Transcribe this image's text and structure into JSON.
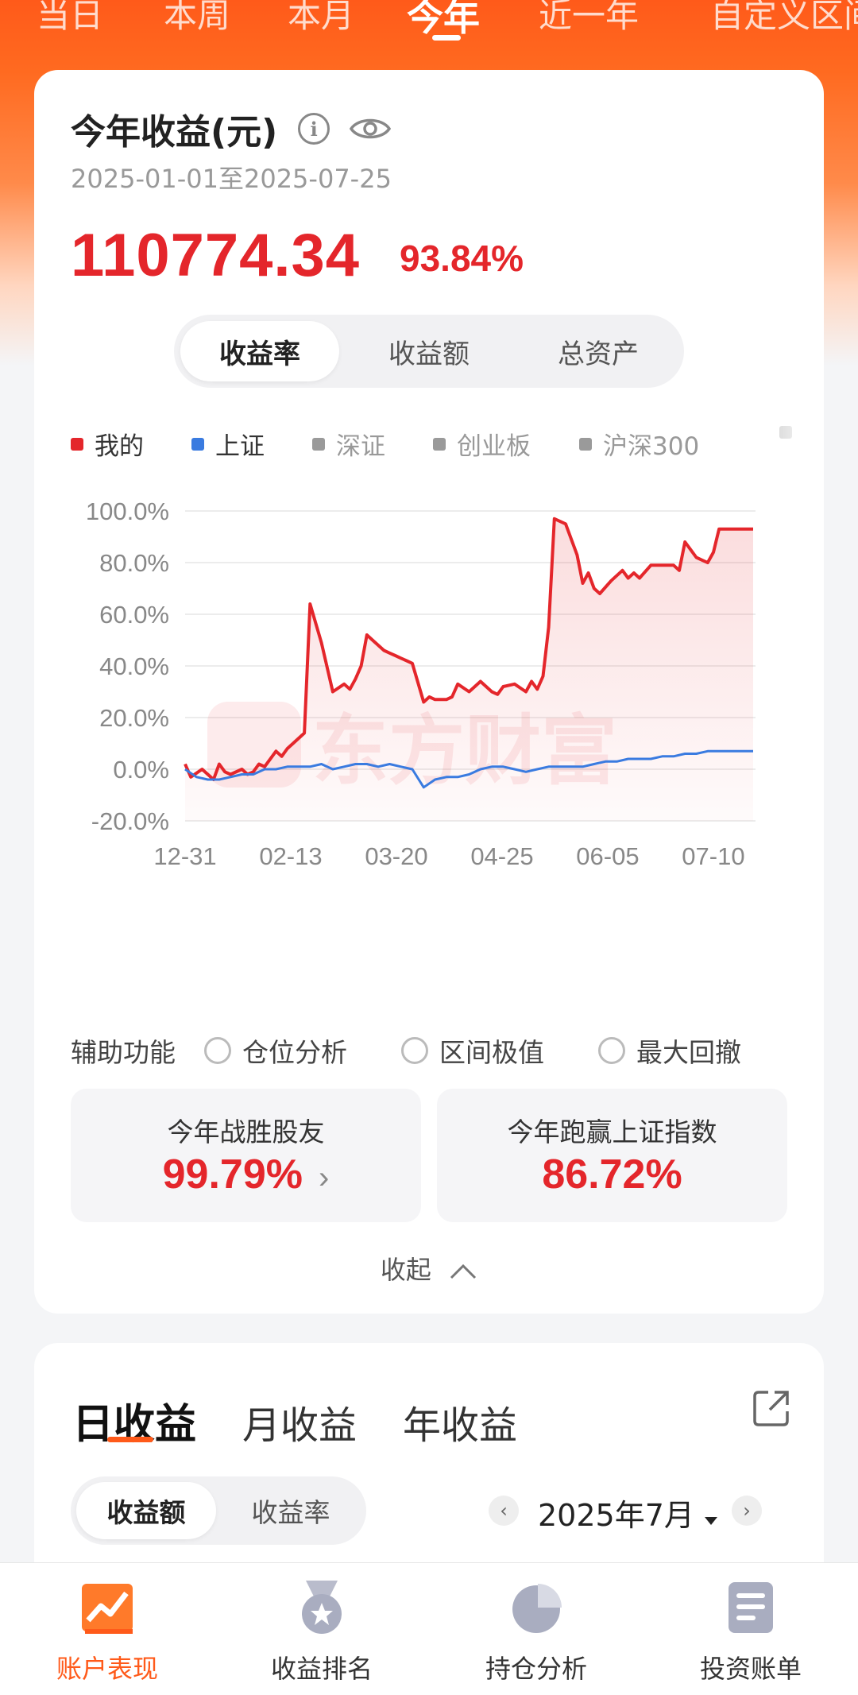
{
  "period_tabs": [
    {
      "label": "当日",
      "active": false
    },
    {
      "label": "本周",
      "active": false
    },
    {
      "label": "本月",
      "active": false
    },
    {
      "label": "今年",
      "active": true
    },
    {
      "label": "近一年",
      "active": false
    },
    {
      "label": "自定义区间",
      "active": false
    }
  ],
  "summary": {
    "title": "今年收益(元)",
    "date_range": "2025-01-01至2025-07-25",
    "amount": "110774.34",
    "percent": "93.84%"
  },
  "metric_tabs": [
    {
      "label": "收益率",
      "active": true
    },
    {
      "label": "收益额",
      "active": false
    },
    {
      "label": "总资产",
      "active": false
    }
  ],
  "legend": [
    {
      "label": "我的",
      "color": "#e4262b"
    },
    {
      "label": "上证",
      "color": "#3a7be0"
    },
    {
      "label": "深证",
      "color": "#9a9a9a"
    },
    {
      "label": "创业板",
      "color": "#9a9a9a"
    },
    {
      "label": "沪深300",
      "color": "#9a9a9a"
    }
  ],
  "watermark": "东方财富",
  "chart_data": {
    "type": "line",
    "x_tick_labels": [
      "12-31",
      "02-13",
      "03-20",
      "04-25",
      "06-05",
      "07-10"
    ],
    "y_tick_labels": [
      "100.0%",
      "80.0%",
      "60.0%",
      "40.0%",
      "20.0%",
      "0.0%",
      "-20.0%"
    ],
    "ylim": [
      -20,
      100
    ],
    "series": [
      {
        "name": "我的",
        "color": "#e4262b",
        "x_index": [
          0,
          1,
          3,
          5,
          6,
          7,
          8,
          10,
          11,
          12,
          13,
          14,
          16,
          17,
          18,
          19,
          20,
          21,
          22,
          24,
          26,
          28,
          29,
          30,
          31,
          32,
          33,
          35,
          36,
          37,
          38,
          39,
          40,
          42,
          43,
          44,
          46,
          47,
          48,
          50,
          52,
          54,
          55,
          56,
          58,
          60,
          61,
          62,
          63,
          64,
          65,
          67,
          69,
          70,
          71,
          72,
          73,
          75,
          77,
          78,
          79,
          80,
          82,
          84,
          86,
          87,
          88,
          89,
          90,
          91,
          92,
          93,
          94,
          95,
          96,
          97,
          98,
          99,
          100
        ],
        "values": [
          2,
          -3,
          0,
          -4,
          2,
          -1,
          -2,
          0,
          -2,
          -1,
          2,
          1,
          7,
          5,
          8,
          10,
          12,
          14,
          64,
          49,
          30,
          33,
          31,
          35,
          40,
          52,
          50,
          46,
          45,
          44,
          43,
          42,
          41,
          26,
          28,
          27,
          27,
          28,
          33,
          30,
          34,
          30,
          29,
          32,
          33,
          30,
          34,
          31,
          36,
          55,
          97,
          95,
          83,
          72,
          76,
          70,
          68,
          73,
          77,
          74,
          76,
          74,
          79,
          79,
          79,
          77,
          88,
          85,
          82,
          81,
          80,
          84,
          93,
          93,
          93,
          93,
          93,
          93,
          93
        ],
        "note": "values are approximate readings"
      },
      {
        "name": "上证",
        "color": "#3a7be0",
        "x_index": [
          0,
          2,
          4,
          6,
          8,
          10,
          12,
          14,
          16,
          18,
          20,
          22,
          24,
          26,
          28,
          30,
          32,
          34,
          36,
          38,
          40,
          42,
          44,
          46,
          48,
          50,
          52,
          54,
          56,
          58,
          60,
          62,
          64,
          66,
          68,
          70,
          72,
          74,
          76,
          78,
          80,
          82,
          84,
          86,
          88,
          90,
          92,
          94,
          96,
          98,
          100
        ],
        "values": [
          0,
          -3,
          -4,
          -4,
          -3,
          -2,
          -2,
          0,
          0,
          1,
          1,
          1,
          2,
          0,
          1,
          2,
          2,
          1,
          2,
          1,
          0,
          -7,
          -4,
          -3,
          -3,
          -2,
          0,
          1,
          1,
          0,
          -1,
          0,
          1,
          1,
          1,
          1,
          2,
          3,
          3,
          4,
          4,
          4,
          5,
          5,
          6,
          6,
          7,
          7,
          7,
          7,
          7
        ]
      }
    ]
  },
  "aux": {
    "label": "辅助功能",
    "options": [
      "仓位分析",
      "区间极值",
      "最大回撤"
    ]
  },
  "stats": [
    {
      "label": "今年战胜股友",
      "value": "99.79%"
    },
    {
      "label": "今年跑赢上证指数",
      "value": "86.72%"
    }
  ],
  "collapse_label": "收起",
  "income_tabs": [
    {
      "label": "日收益",
      "active": true
    },
    {
      "label": "月收益",
      "active": false
    },
    {
      "label": "年收益",
      "active": false
    }
  ],
  "income_metric_tabs": [
    {
      "label": "收益额",
      "active": true
    },
    {
      "label": "收益率",
      "active": false
    }
  ],
  "month_selector": {
    "label": "2025年7月",
    "prev": "‹",
    "next": "›"
  },
  "bottom_nav": [
    {
      "label": "账户表现",
      "icon": "chart-trend-icon",
      "active": true
    },
    {
      "label": "收益排名",
      "icon": "medal-icon",
      "active": false
    },
    {
      "label": "持仓分析",
      "icon": "pie-chart-icon",
      "active": false
    },
    {
      "label": "投资账单",
      "icon": "document-icon",
      "active": false
    }
  ]
}
